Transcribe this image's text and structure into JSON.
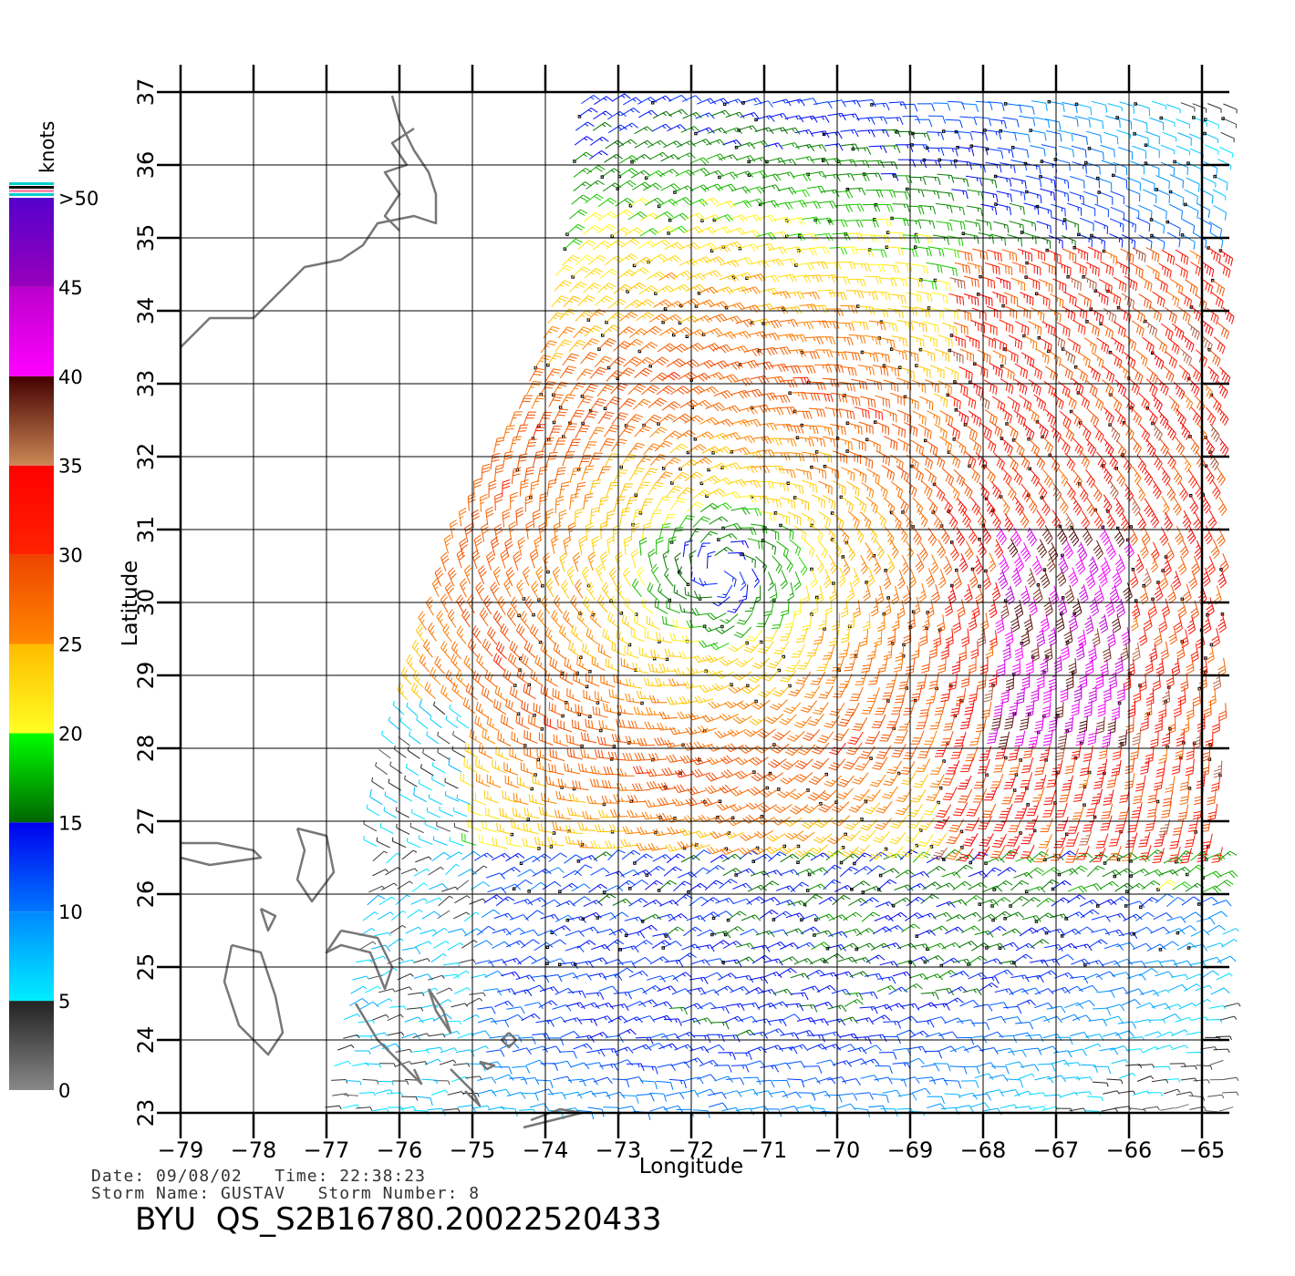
{
  "chart_data": {
    "type": "wind-barb-map",
    "xlabel": "Longitude",
    "ylabel": "Latitude",
    "xlim": [
      -79,
      -65
    ],
    "ylim": [
      23,
      37
    ],
    "x_ticks": [
      "−79",
      "−78",
      "−77",
      "−76",
      "−75",
      "−74",
      "−73",
      "−72",
      "−71",
      "−70",
      "−69",
      "−68",
      "−67",
      "−66",
      "−65"
    ],
    "y_ticks": [
      "23",
      "24",
      "25",
      "26",
      "27",
      "28",
      "29",
      "30",
      "31",
      "32",
      "33",
      "34",
      "35",
      "36",
      "37"
    ],
    "grid": true,
    "storm_center": {
      "lon": -71.6,
      "lat": 30.4
    },
    "colorbar": {
      "title": "knots",
      "labels": [
        "0",
        "5",
        "10",
        "15",
        "20",
        "25",
        "30",
        "35",
        "40",
        "45",
        ">50"
      ],
      "bands": [
        {
          "from": 0,
          "to": 5,
          "colors": [
            "#888888",
            "#222222"
          ]
        },
        {
          "from": 5,
          "to": 10,
          "colors": [
            "#00eeff",
            "#0088ff"
          ]
        },
        {
          "from": 10,
          "to": 15,
          "colors": [
            "#0077ff",
            "#0000ee"
          ]
        },
        {
          "from": 15,
          "to": 20,
          "colors": [
            "#006600",
            "#00ff00"
          ]
        },
        {
          "from": 20,
          "to": 25,
          "colors": [
            "#ffff22",
            "#ffbb00"
          ]
        },
        {
          "from": 25,
          "to": 30,
          "colors": [
            "#ff8800",
            "#ee4400"
          ]
        },
        {
          "from": 30,
          "to": 35,
          "colors": [
            "#ff2200",
            "#ff0000"
          ]
        },
        {
          "from": 35,
          "to": 40,
          "colors": [
            "#cc8855",
            "#440000"
          ]
        },
        {
          "from": 40,
          "to": 45,
          "colors": [
            "#ff00ff",
            "#bb00cc"
          ]
        },
        {
          "from": 45,
          "to": 50,
          "colors": [
            "#9900bb",
            "#5500cc"
          ]
        }
      ]
    }
  },
  "info": {
    "date_line": "Date: 09/08/02   Time: 22:38:23",
    "storm_line": "Storm Name: GUSTAV   Storm Number: 8",
    "product": "BYU  QS_S2B16780.20022520433"
  },
  "colors": {
    "coast": "#777777",
    "grid": "#000000"
  }
}
